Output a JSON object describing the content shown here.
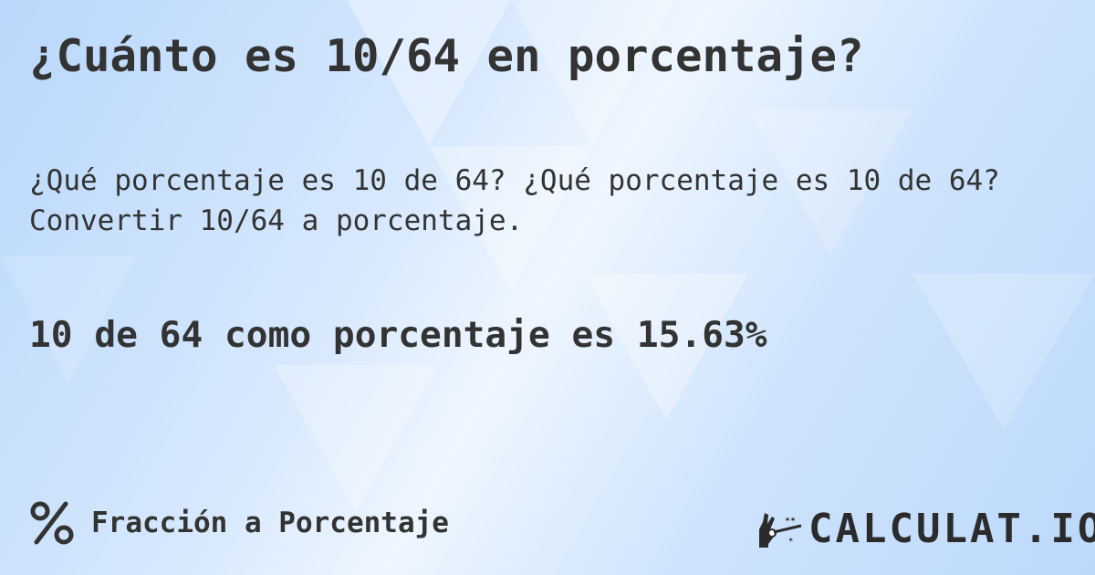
{
  "header": {
    "title": "¿Cuánto es 10/64 en porcentaje?"
  },
  "description": {
    "line1": "¿Qué porcentaje es 10 de 64? ¿Qué porcentaje es 10 de 64?",
    "line2": "Convertir 10/64 a porcentaje."
  },
  "answer": {
    "text": "10 de 64 como porcentaje es 15.63%"
  },
  "footer": {
    "category_icon": "percent-icon",
    "category_label": "Fracción a Porcentaje"
  },
  "brand": {
    "logo_text": "CALCULAT.IO",
    "logo_icon": "magic-hand-wand-icon"
  },
  "colors": {
    "text": "#333333",
    "background": "#cfe4fc"
  }
}
